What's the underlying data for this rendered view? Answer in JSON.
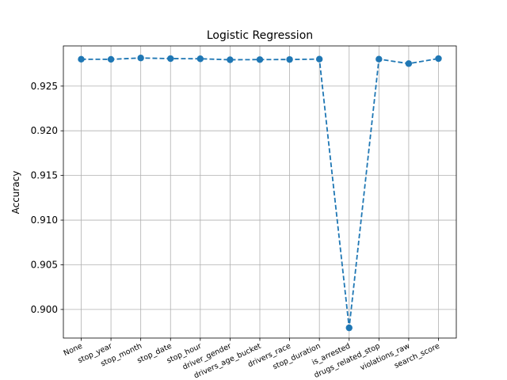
{
  "chart_data": {
    "type": "line",
    "title": "Logistic Regression",
    "xlabel": "",
    "ylabel": "Accuracy",
    "categories": [
      "None",
      "stop_year",
      "stop_month",
      "stop_date",
      "stop_hour",
      "driver_gender",
      "drivers_age_bucket",
      "drivers_race",
      "stop_duration",
      "is_arrested",
      "drugs_related_stop",
      "violations_raw",
      "search_score"
    ],
    "series": [
      {
        "values": [
          0.92801,
          0.928,
          0.92815,
          0.92808,
          0.92806,
          0.92795,
          0.92797,
          0.92798,
          0.92802,
          0.89794,
          0.92802,
          0.92752,
          0.92808
        ],
        "color": "#1f77b4",
        "line_style": "dashed",
        "marker": "circle"
      }
    ],
    "ylim": [
      0.8968,
      0.9295
    ],
    "yticks": [
      "0.900",
      "0.905",
      "0.910",
      "0.915",
      "0.920",
      "0.925"
    ],
    "grid": true
  }
}
